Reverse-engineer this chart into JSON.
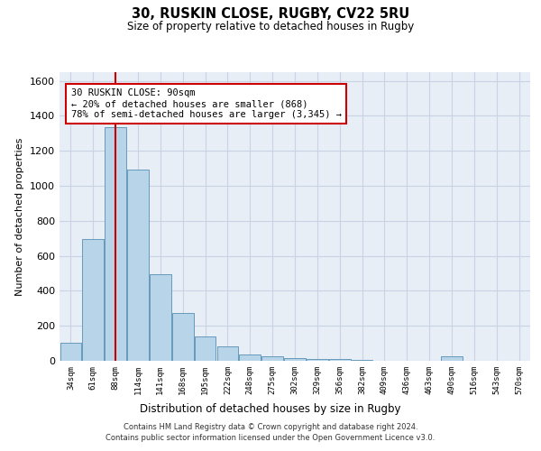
{
  "title1": "30, RUSKIN CLOSE, RUGBY, CV22 5RU",
  "title2": "Size of property relative to detached houses in Rugby",
  "xlabel": "Distribution of detached houses by size in Rugby",
  "ylabel": "Number of detached properties",
  "categories": [
    "34sqm",
    "61sqm",
    "88sqm",
    "114sqm",
    "141sqm",
    "168sqm",
    "195sqm",
    "222sqm",
    "248sqm",
    "275sqm",
    "302sqm",
    "329sqm",
    "356sqm",
    "382sqm",
    "409sqm",
    "436sqm",
    "463sqm",
    "490sqm",
    "516sqm",
    "543sqm",
    "570sqm"
  ],
  "values": [
    105,
    695,
    1335,
    1095,
    495,
    275,
    140,
    80,
    35,
    28,
    15,
    10,
    8,
    5,
    0,
    0,
    0,
    28,
    0,
    0,
    0
  ],
  "bar_color": "#b8d4e8",
  "bar_edge_color": "#6699bb",
  "vline_x_index": 2,
  "vline_color": "#cc0000",
  "annotation_text": "30 RUSKIN CLOSE: 90sqm\n← 20% of detached houses are smaller (868)\n78% of semi-detached houses are larger (3,345) →",
  "annotation_box_color": "#cc0000",
  "ylim": [
    0,
    1650
  ],
  "yticks": [
    0,
    200,
    400,
    600,
    800,
    1000,
    1200,
    1400,
    1600
  ],
  "grid_color": "#c8d4e4",
  "bg_color": "#e8eef6",
  "footer1": "Contains HM Land Registry data © Crown copyright and database right 2024.",
  "footer2": "Contains public sector information licensed under the Open Government Licence v3.0."
}
